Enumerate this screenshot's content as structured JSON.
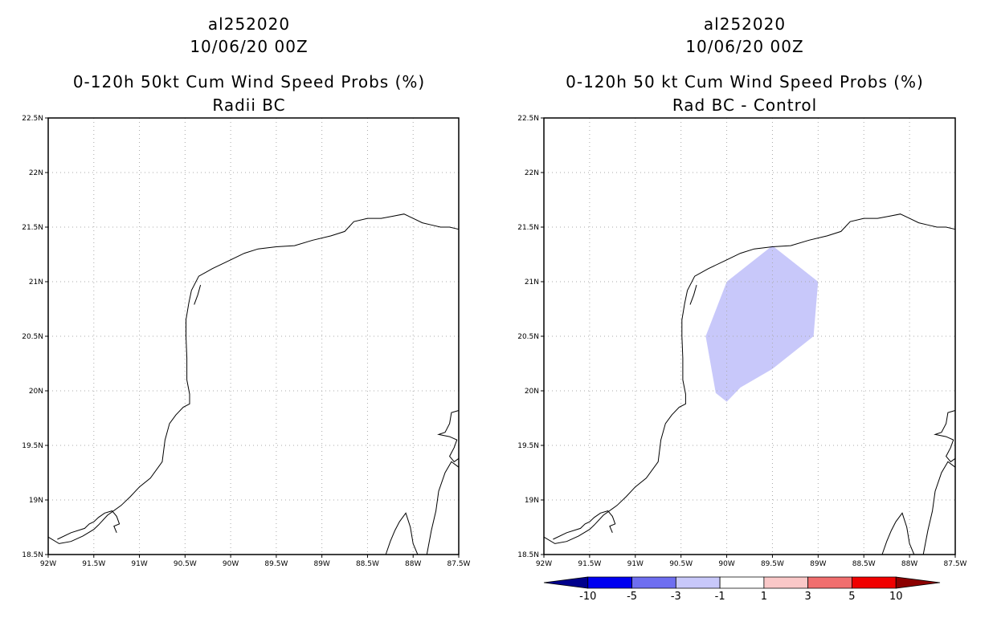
{
  "chart_data": [
    {
      "type": "map",
      "title_lines": [
        "al252020",
        "10/06/20 00Z",
        "0-120h 50kt Cum Wind Speed Probs (%)",
        "Radii BC"
      ],
      "x_ticks": [
        "92W",
        "91.5W",
        "91W",
        "90.5W",
        "90W",
        "89.5W",
        "89W",
        "88.5W",
        "88W",
        "87.5W"
      ],
      "y_ticks": [
        "22.5N",
        "22N",
        "21.5N",
        "21N",
        "20.5N",
        "20N",
        "19.5N",
        "19N",
        "18.5N"
      ],
      "lon_range": [
        -92,
        -87.5
      ],
      "lat_range": [
        18.5,
        22.5
      ],
      "grid": true,
      "shaded_regions": []
    },
    {
      "type": "map",
      "title_lines": [
        "al252020",
        "10/06/20 00Z",
        "0-120h 50 kt Cum Wind Speed Probs (%)",
        "Rad BC - Control"
      ],
      "x_ticks": [
        "92W",
        "91.5W",
        "91W",
        "90.5W",
        "90W",
        "89.5W",
        "89W",
        "88.5W",
        "88W",
        "87.5W"
      ],
      "y_ticks": [
        "22.5N",
        "22N",
        "21.5N",
        "21N",
        "20.5N",
        "20N",
        "19.5N",
        "19N",
        "18.5N"
      ],
      "lon_range": [
        -92,
        -87.5
      ],
      "lat_range": [
        18.5,
        22.5
      ],
      "grid": true,
      "shaded_regions": [
        {
          "color": "#c8c8fa",
          "range": "-3 to -1",
          "polygon": [
            [
              -90.23,
              20.5
            ],
            [
              -90.0,
              21.0
            ],
            [
              -89.5,
              21.33
            ],
            [
              -89.0,
              21.0
            ],
            [
              -89.05,
              20.5
            ],
            [
              -89.5,
              20.2
            ],
            [
              -89.85,
              20.03
            ],
            [
              -90.0,
              19.9
            ],
            [
              -90.12,
              19.98
            ]
          ]
        }
      ],
      "colorbar": {
        "labels": [
          "-10",
          "-5",
          "-3",
          "-1",
          "1",
          "3",
          "5",
          "10"
        ],
        "colors": [
          "#00008c",
          "#0000f0",
          "#6e6ef0",
          "#c8c8fa",
          "#ffffff",
          "#fac8c8",
          "#f06e6e",
          "#f00000",
          "#8c0000"
        ]
      }
    }
  ]
}
